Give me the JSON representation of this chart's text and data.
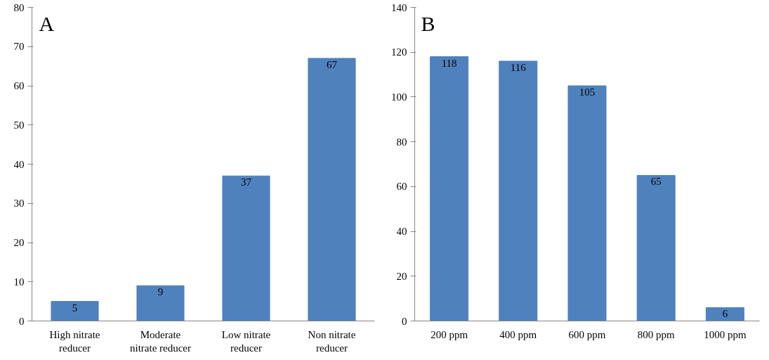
{
  "chart_data": [
    {
      "type": "bar",
      "title": "A",
      "categories": [
        "High nitrate\nreducer",
        "Moderate\nnitrate reducer",
        "Low nitrate\nreducer",
        "Non nitrate\nreducer"
      ],
      "values": [
        5,
        9,
        37,
        67
      ],
      "color": "#4f81bd",
      "ylim": [
        0,
        80
      ],
      "yticks": [
        0,
        10,
        20,
        30,
        40,
        50,
        60,
        70,
        80
      ],
      "data_labels": true,
      "grid": false
    },
    {
      "type": "bar",
      "title": "B",
      "categories": [
        "200 ppm",
        "400 ppm",
        "600 ppm",
        "800 ppm",
        "1000 ppm"
      ],
      "values": [
        118,
        116,
        105,
        65,
        6
      ],
      "color": "#4f81bd",
      "ylim": [
        0,
        140
      ],
      "yticks": [
        0,
        20,
        40,
        60,
        80,
        100,
        120,
        140
      ],
      "data_labels": true,
      "grid": false
    }
  ]
}
